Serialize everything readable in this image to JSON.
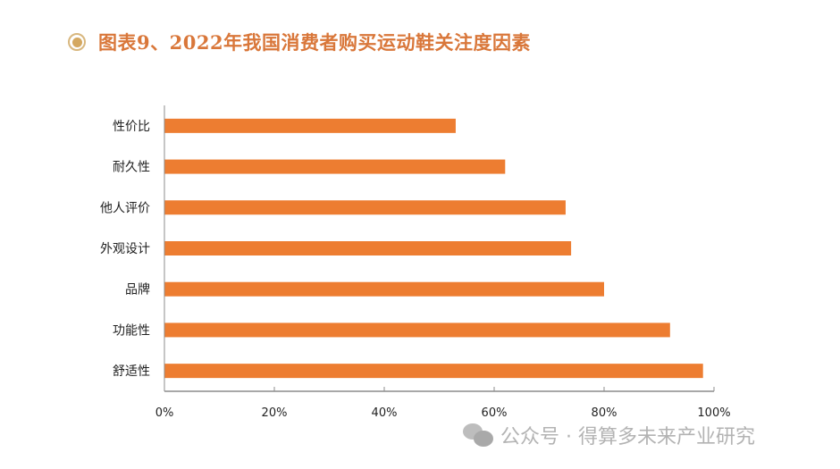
{
  "title": "图表9、2022年我国消费者购买运动鞋关注度因素",
  "watermark": "公众号 · 得算多未来产业研究",
  "colors": {
    "bar": "#ed7d31",
    "title": "#d9773a",
    "axis": "#8c8c8c"
  },
  "chart_data": {
    "type": "bar",
    "orientation": "horizontal",
    "title": "图表9、2022年我国消费者购买运动鞋关注度因素",
    "categories": [
      "性价比",
      "耐久性",
      "他人评价",
      "外观设计",
      "品牌",
      "功能性",
      "舒适性"
    ],
    "values": [
      53,
      62,
      73,
      74,
      80,
      92,
      98
    ],
    "unit": "%",
    "xlim": [
      0,
      100
    ],
    "xticks": [
      "0%",
      "20%",
      "40%",
      "60%",
      "80%",
      "100%"
    ],
    "xlabel": "",
    "ylabel": "",
    "grid": false,
    "legend": "none"
  }
}
